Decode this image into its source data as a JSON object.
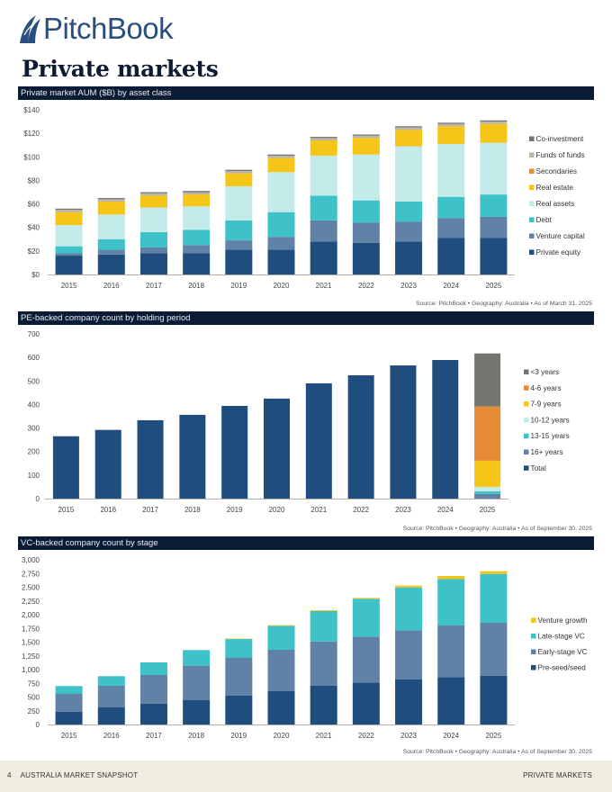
{
  "header": {
    "logo_text": "PitchBook",
    "page_title": "Private markets"
  },
  "footer": {
    "page_number": "4",
    "report_name": "AUSTRALIA MARKET SNAPSHOT",
    "section_name": "PRIVATE MARKETS"
  },
  "colors": {
    "navy_bar": "#0a1b36",
    "logo": "#2a4f7e"
  },
  "chart_data": [
    {
      "id": "aum",
      "type": "bar",
      "stacked": true,
      "title": "Private market AUM ($B) by asset class",
      "source": "Source: PitchBook • Geography: Australia • As of March 31, 2025",
      "xlabel": "",
      "ylabel": "",
      "ylim": [
        0,
        140
      ],
      "yticks": [
        0,
        20,
        40,
        60,
        80,
        100,
        120,
        140
      ],
      "ytick_labels": [
        "$0",
        "$20",
        "$40",
        "$60",
        "$80",
        "$100",
        "$120",
        "$140"
      ],
      "grid": false,
      "legend_position": "right",
      "categories": [
        "2015",
        "2016",
        "2017",
        "2018",
        "2019",
        "2020",
        "2021",
        "2022",
        "2023",
        "2024",
        "2025"
      ],
      "series": [
        {
          "name": "Private equity",
          "color": "#1f4e7e",
          "values": [
            16,
            17,
            18,
            18,
            21,
            21,
            28,
            27,
            28,
            31,
            31
          ]
        },
        {
          "name": "Venture capital",
          "color": "#5f82a6",
          "values": [
            2,
            4,
            5,
            7,
            8,
            11,
            18,
            17,
            17,
            17,
            18
          ]
        },
        {
          "name": "Debt",
          "color": "#3ec1c8",
          "values": [
            6,
            9,
            13,
            13,
            17,
            21,
            21,
            19,
            17,
            18,
            19
          ]
        },
        {
          "name": "Real assets",
          "color": "#c2ebea",
          "values": [
            18,
            21,
            21,
            20,
            29,
            34,
            34,
            39,
            47,
            45,
            44
          ]
        },
        {
          "name": "Real estate",
          "color": "#f5c518",
          "values": [
            11,
            11,
            10,
            10,
            11,
            12,
            13,
            14,
            14,
            15,
            16
          ]
        },
        {
          "name": "Secondaries",
          "color": "#e68a35",
          "values": [
            0,
            0,
            0,
            0,
            0,
            0,
            0,
            0,
            0,
            0,
            0
          ]
        },
        {
          "name": "Funds of funds",
          "color": "#bdb5a6",
          "values": [
            2,
            2,
            2,
            2,
            2,
            2,
            2,
            2,
            2,
            2,
            2
          ]
        },
        {
          "name": "Co-investment",
          "color": "#77756f",
          "values": [
            1,
            1,
            1,
            1,
            1,
            1,
            1,
            1,
            1,
            1,
            1
          ]
        }
      ]
    },
    {
      "id": "pe",
      "type": "bar",
      "stacked": true,
      "title": "PE-backed company count by holding period",
      "source": "Source: PitchBook • Geography: Australia • As of September 30, 2025",
      "xlabel": "",
      "ylabel": "",
      "ylim": [
        0,
        700
      ],
      "yticks": [
        0,
        100,
        200,
        300,
        400,
        500,
        600,
        700
      ],
      "ytick_labels": [
        "0",
        "100",
        "200",
        "300",
        "400",
        "500",
        "600",
        "700"
      ],
      "grid": false,
      "legend_position": "right",
      "categories": [
        "2015",
        "2016",
        "2017",
        "2018",
        "2019",
        "2020",
        "2021",
        "2022",
        "2023",
        "2024",
        "2025"
      ],
      "series": [
        {
          "name": "Total",
          "color": "#1f4e7e",
          "values": [
            265,
            292,
            333,
            356,
            394,
            425,
            490,
            524,
            566,
            589,
            0
          ]
        },
        {
          "name": "16+ years",
          "color": "#5f82a6",
          "values": [
            0,
            0,
            0,
            0,
            0,
            0,
            0,
            0,
            0,
            0,
            20
          ]
        },
        {
          "name": "13-15 years",
          "color": "#3ec1c8",
          "values": [
            0,
            0,
            0,
            0,
            0,
            0,
            0,
            0,
            0,
            0,
            11
          ]
        },
        {
          "name": "10-12 years",
          "color": "#c2ebea",
          "values": [
            0,
            0,
            0,
            0,
            0,
            0,
            0,
            0,
            0,
            0,
            19
          ]
        },
        {
          "name": "7-9 years",
          "color": "#f5c518",
          "values": [
            0,
            0,
            0,
            0,
            0,
            0,
            0,
            0,
            0,
            0,
            111
          ]
        },
        {
          "name": "4-6 years",
          "color": "#e68a35",
          "values": [
            0,
            0,
            0,
            0,
            0,
            0,
            0,
            0,
            0,
            0,
            230
          ]
        },
        {
          "name": "<3 years",
          "color": "#77756f",
          "values": [
            0,
            0,
            0,
            0,
            0,
            0,
            0,
            0,
            0,
            0,
            226
          ]
        }
      ]
    },
    {
      "id": "vc",
      "type": "bar",
      "stacked": true,
      "title": "VC-backed company count by stage",
      "source": "Source: PitchBook • Geography: Australia • As of September 30, 2025",
      "xlabel": "",
      "ylabel": "",
      "ylim": [
        0,
        3000
      ],
      "yticks": [
        0,
        250,
        500,
        750,
        1000,
        1250,
        1500,
        1750,
        2000,
        2250,
        2500,
        2750,
        3000
      ],
      "ytick_labels": [
        "0",
        "250",
        "500",
        "750",
        "1,000",
        "1,250",
        "1,500",
        "1,750",
        "2,000",
        "2,250",
        "2,500",
        "2,750",
        "3,000"
      ],
      "grid": false,
      "legend_position": "right",
      "categories": [
        "2015",
        "2016",
        "2017",
        "2018",
        "2019",
        "2020",
        "2021",
        "2022",
        "2023",
        "2024",
        "2025"
      ],
      "series": [
        {
          "name": "Pre-seed/seed",
          "color": "#1f4e7e",
          "values": [
            235,
            311,
            382,
            448,
            530,
            607,
            710,
            765,
            825,
            864,
            890
          ]
        },
        {
          "name": "Early-stage VC",
          "color": "#5f82a6",
          "values": [
            322,
            394,
            520,
            623,
            683,
            754,
            803,
            836,
            891,
            939,
            962
          ]
        },
        {
          "name": "Late-stage VC",
          "color": "#3ec1c8",
          "values": [
            143,
            175,
            229,
            284,
            344,
            437,
            553,
            689,
            781,
            847,
            891
          ]
        },
        {
          "name": "Venture growth",
          "color": "#f5c518",
          "values": [
            0,
            0,
            0,
            0,
            8,
            12,
            16,
            16,
            33,
            55,
            49
          ]
        }
      ]
    }
  ]
}
